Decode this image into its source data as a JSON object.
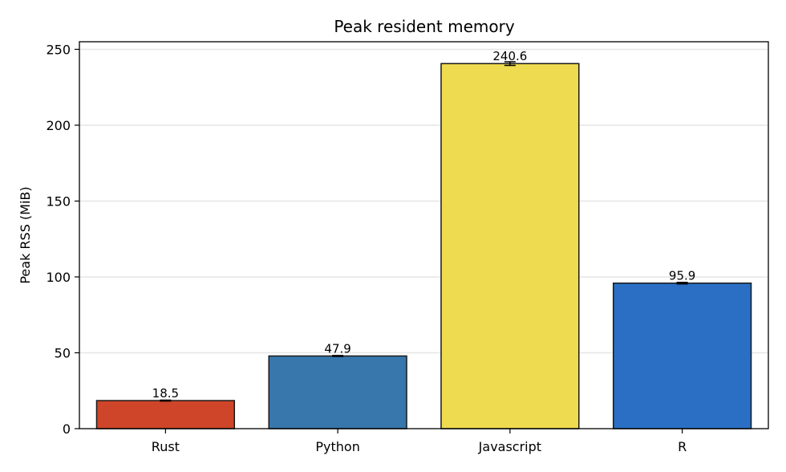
{
  "chart_data": {
    "type": "bar",
    "title": "Peak resident memory",
    "xlabel": "",
    "ylabel": "Peak RSS (MiB)",
    "categories": [
      "Rust",
      "Python",
      "Javascript",
      "R"
    ],
    "values": [
      18.5,
      47.9,
      240.6,
      95.9
    ],
    "errors": [
      0.3,
      0.3,
      1.2,
      0.5
    ],
    "colors": [
      "#cf4529",
      "#3777ab",
      "#eedb4f",
      "#2a6fc4"
    ],
    "ylim": [
      0,
      255
    ],
    "yticks": [
      0,
      50,
      100,
      150,
      200,
      250
    ],
    "grid": true,
    "legend": "none"
  }
}
